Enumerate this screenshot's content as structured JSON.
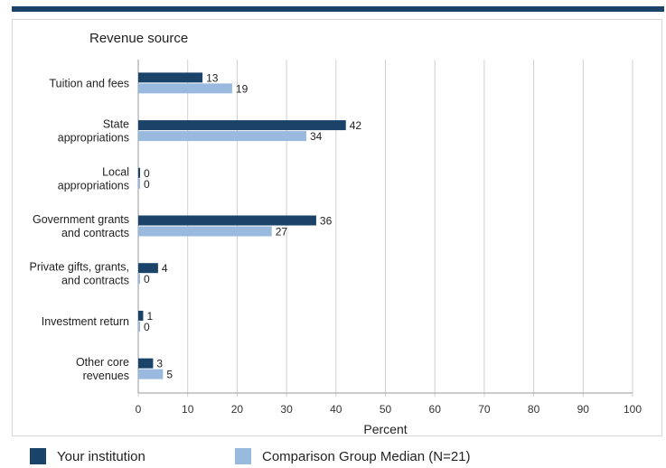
{
  "chart_data": {
    "type": "bar",
    "orientation": "horizontal",
    "title": "Revenue source",
    "xlabel": "Percent",
    "xlim": [
      0,
      100
    ],
    "xticks": [
      0,
      10,
      20,
      30,
      40,
      50,
      60,
      70,
      80,
      90,
      100
    ],
    "grid": true,
    "legend_position": "bottom",
    "categories": [
      [
        "Tuition and fees"
      ],
      [
        "State",
        "appropriations"
      ],
      [
        "Local",
        "appropriations"
      ],
      [
        "Government grants",
        "and contracts"
      ],
      [
        "Private gifts, grants,",
        "and contracts"
      ],
      [
        "Investment return"
      ],
      [
        "Other core",
        "revenues"
      ]
    ],
    "series": [
      {
        "name": "Your institution",
        "color": "#1b4369",
        "values": [
          13,
          42,
          0,
          36,
          4,
          1,
          3
        ]
      },
      {
        "name": "Comparison Group Median (N=21)",
        "color": "#9ab9df",
        "values": [
          19,
          34,
          0,
          27,
          0,
          0,
          5
        ]
      }
    ]
  }
}
